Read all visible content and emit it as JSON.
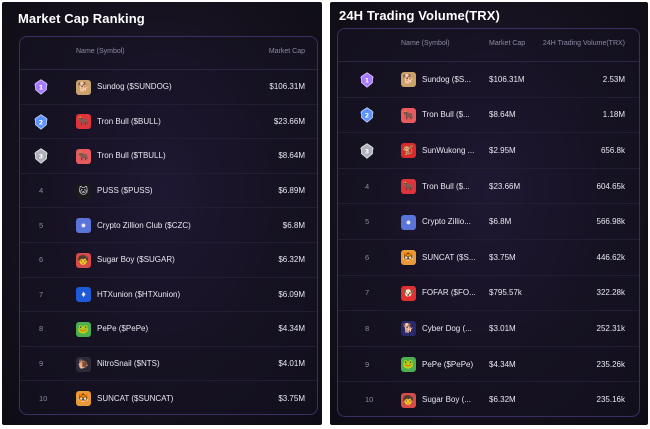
{
  "left": {
    "title": "Market Cap Ranking",
    "headers": {
      "name": "Name (Symbol)",
      "market_cap": "Market Cap"
    },
    "rows": [
      {
        "rank": "1",
        "medal": "gold",
        "icon": "dog-face-icon",
        "icon_bg": "#c9a36a",
        "glyph": "🐕",
        "name": "Sundog ($SUNDOG)",
        "market_cap": "$106.31M"
      },
      {
        "rank": "2",
        "medal": "blue",
        "icon": "bull-icon",
        "icon_bg": "#e0333a",
        "glyph": "🐂",
        "name": "Tron Bull ($BULL)",
        "market_cap": "$23.66M"
      },
      {
        "rank": "3",
        "medal": "silver",
        "icon": "bull-icon",
        "icon_bg": "#e85a5e",
        "glyph": "🐂",
        "name": "Tron Bull ($TBULL)",
        "market_cap": "$8.64M"
      },
      {
        "rank": "4",
        "medal": "",
        "icon": "cat-icon",
        "icon_bg": "#1a1a1a",
        "glyph": "🐱",
        "name": "PUSS ($PUSS)",
        "market_cap": "$6.89M"
      },
      {
        "rank": "5",
        "medal": "",
        "icon": "crypto-zillion-icon",
        "icon_bg": "#5b74d9",
        "glyph": "●",
        "name": "Crypto Zillion Club ($CZC)",
        "market_cap": "$6.8M"
      },
      {
        "rank": "6",
        "medal": "",
        "icon": "sugar-boy-icon",
        "icon_bg": "#d94a4a",
        "glyph": "🧒",
        "name": "Sugar Boy ($SUGAR)",
        "market_cap": "$6.32M"
      },
      {
        "rank": "7",
        "medal": "",
        "icon": "htx-icon",
        "icon_bg": "#1e5ad6",
        "glyph": "♦",
        "name": "HTXunion ($HTXunion)",
        "market_cap": "$6.09M"
      },
      {
        "rank": "8",
        "medal": "",
        "icon": "pepe-frog-icon",
        "icon_bg": "#4caf50",
        "glyph": "🐸",
        "name": "PePe ($PePe)",
        "market_cap": "$4.34M"
      },
      {
        "rank": "9",
        "medal": "",
        "icon": "snail-icon",
        "icon_bg": "#2b2b3a",
        "glyph": "🐌",
        "name": "NitroSnail ($NTS)",
        "market_cap": "$4.01M"
      },
      {
        "rank": "10",
        "medal": "",
        "icon": "tiger-cat-icon",
        "icon_bg": "#e89a3a",
        "glyph": "🐯",
        "name": "SUNCAT ($SUNCAT)",
        "market_cap": "$3.75M"
      }
    ]
  },
  "right": {
    "title": "24H Trading Volume(TRX)",
    "headers": {
      "name": "Name (Symbol)",
      "market_cap": "Market Cap",
      "volume": "24H Trading Volume(TRX)"
    },
    "rows": [
      {
        "rank": "1",
        "medal": "gold",
        "icon": "dog-face-icon",
        "icon_bg": "#c9a36a",
        "glyph": "🐕",
        "name": "Sundog ($S...",
        "market_cap": "$106.31M",
        "volume": "2.53M"
      },
      {
        "rank": "2",
        "medal": "blue",
        "icon": "bull-icon",
        "icon_bg": "#e85a5e",
        "glyph": "🐂",
        "name": "Tron Bull ($...",
        "market_cap": "$8.64M",
        "volume": "1.18M"
      },
      {
        "rank": "3",
        "medal": "silver",
        "icon": "sunwukong-icon",
        "icon_bg": "#d92b2b",
        "glyph": "🐒",
        "name": "SunWukong ...",
        "market_cap": "$2.95M",
        "volume": "656.8k"
      },
      {
        "rank": "4",
        "medal": "",
        "icon": "bull-icon",
        "icon_bg": "#e0333a",
        "glyph": "🐂",
        "name": "Tron Bull ($...",
        "market_cap": "$23.66M",
        "volume": "604.65k"
      },
      {
        "rank": "5",
        "medal": "",
        "icon": "crypto-zillion-icon",
        "icon_bg": "#5b74d9",
        "glyph": "●",
        "name": "Crypto Zillio...",
        "market_cap": "$6.8M",
        "volume": "566.98k"
      },
      {
        "rank": "6",
        "medal": "",
        "icon": "tiger-cat-icon",
        "icon_bg": "#e89a3a",
        "glyph": "🐯",
        "name": "SUNCAT ($S...",
        "market_cap": "$3.75M",
        "volume": "446.62k"
      },
      {
        "rank": "7",
        "medal": "",
        "icon": "fofar-icon",
        "icon_bg": "#e03030",
        "glyph": "🐶",
        "name": "FOFAR ($FO...",
        "market_cap": "$795.57k",
        "volume": "322.28k"
      },
      {
        "rank": "8",
        "medal": "",
        "icon": "cyber-dog-icon",
        "icon_bg": "#2a2a6a",
        "glyph": "🐕",
        "name": "Cyber Dog (...",
        "market_cap": "$3.01M",
        "volume": "252.31k"
      },
      {
        "rank": "9",
        "medal": "",
        "icon": "pepe-frog-icon",
        "icon_bg": "#4caf50",
        "glyph": "🐸",
        "name": "PePe ($PePe)",
        "market_cap": "$4.34M",
        "volume": "235.26k"
      },
      {
        "rank": "10",
        "medal": "",
        "icon": "sugar-boy-icon",
        "icon_bg": "#d94a4a",
        "glyph": "🧒",
        "name": "Sugar Boy (...",
        "market_cap": "$6.32M",
        "volume": "235.16k"
      }
    ]
  },
  "colors": {
    "panel_bg": "#16121f",
    "card_border": "#3a2f63",
    "muted_text": "#8c8aa3",
    "medal_gold": "#8a5cf0",
    "medal_blue": "#4d8cff",
    "medal_silver": "#c0c4cc"
  }
}
